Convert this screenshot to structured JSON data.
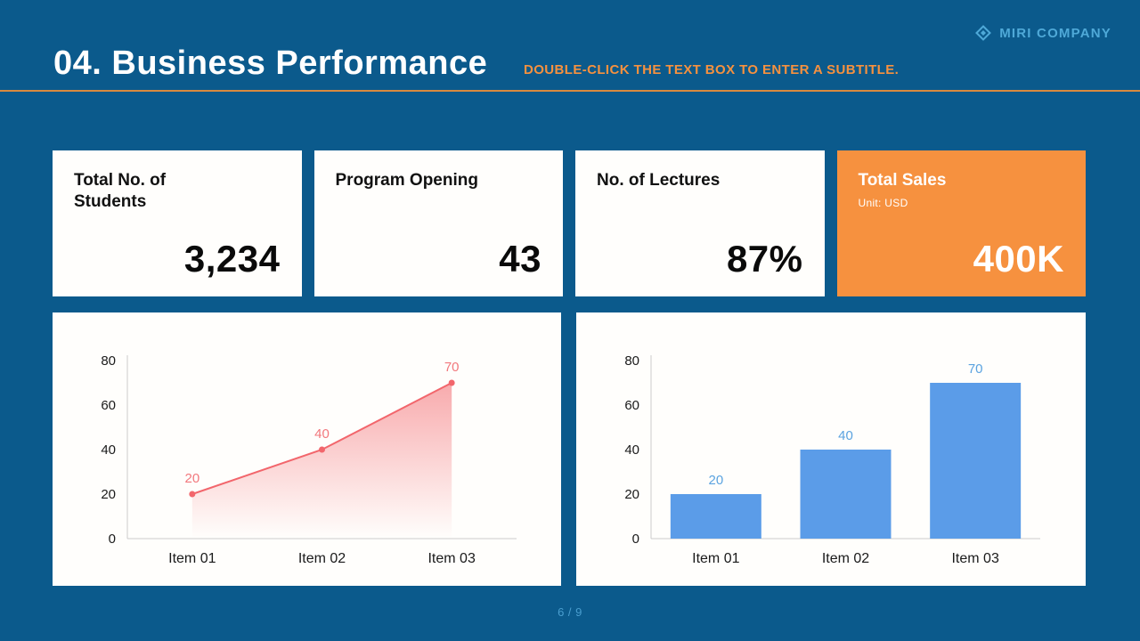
{
  "brand": {
    "name": "MIRI COMPANY"
  },
  "header": {
    "title": "04. Business Performance",
    "subtitle": "DOUBLE-CLICK THE TEXT BOX TO ENTER A SUBTITLE."
  },
  "cards": [
    {
      "title": "Total No. of Students",
      "value": "3,234",
      "variant": "white"
    },
    {
      "title": "Program Opening",
      "value": "43",
      "variant": "white"
    },
    {
      "title": "No. of Lectures",
      "value": "87%",
      "variant": "white"
    },
    {
      "title": "Total Sales",
      "subtitle": "Unit: USD",
      "value": "400K",
      "variant": "orange"
    }
  ],
  "footer": {
    "page": "6 / 9"
  },
  "colors": {
    "background": "#0b5a8c",
    "accent_orange": "#f6913f",
    "brand_blue": "#4fa9d8",
    "line_red": "#f2666c",
    "bar_blue": "#5b9ce8"
  },
  "chart_data": [
    {
      "type": "area",
      "categories": [
        "Item 01",
        "Item 02",
        "Item 03"
      ],
      "values": [
        20,
        40,
        70
      ],
      "title": "",
      "xlabel": "",
      "ylabel": "",
      "ylim": [
        0,
        80
      ],
      "yticks": [
        0,
        20,
        40,
        60,
        80
      ],
      "grid": false,
      "legend": "none",
      "color": "#f2666c",
      "label_color": "#f2787d"
    },
    {
      "type": "bar",
      "categories": [
        "Item 01",
        "Item 02",
        "Item 03"
      ],
      "values": [
        20,
        40,
        70
      ],
      "title": "",
      "xlabel": "",
      "ylabel": "",
      "ylim": [
        0,
        80
      ],
      "yticks": [
        0,
        20,
        40,
        60,
        80
      ],
      "grid": false,
      "legend": "none",
      "color": "#5b9ce8",
      "label_color": "#5ba3e0"
    }
  ]
}
